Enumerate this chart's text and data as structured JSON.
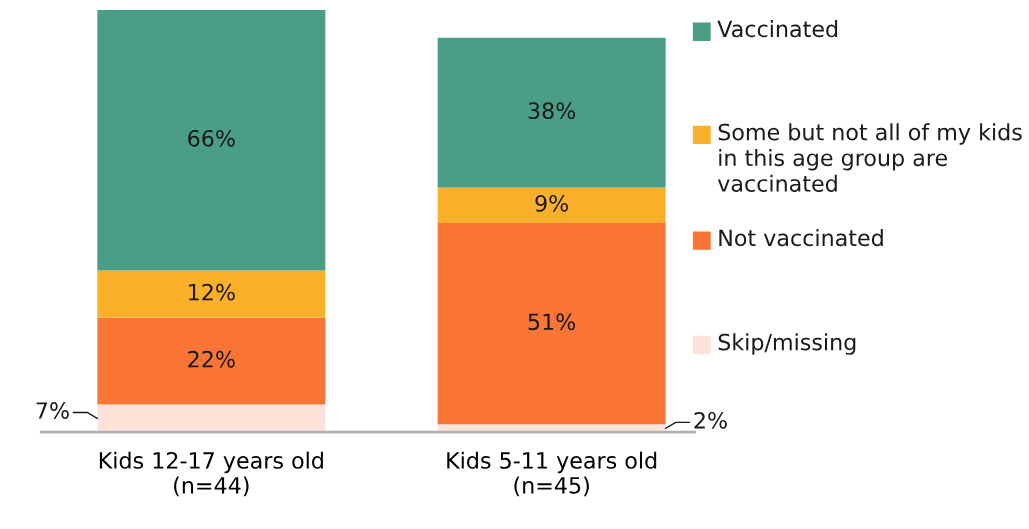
{
  "chart_data": {
    "type": "bar",
    "stacked": true,
    "categories": [
      "Kids 12-17 years old\n(n=44)",
      "Kids 5-11 years old\n(n=45)"
    ],
    "series": [
      {
        "name": "Skip/missing",
        "color": "#fce2d8",
        "values": [
          7,
          2
        ],
        "value_labels": [
          "7%",
          "2%"
        ]
      },
      {
        "name": "Not vaccinated",
        "color": "#fb7636",
        "values": [
          22,
          51
        ],
        "value_labels": [
          "22%",
          "51%"
        ]
      },
      {
        "name": "Some but not all of my kids in this age group are vaccinated",
        "color": "#fbb02c",
        "values": [
          12,
          9
        ],
        "value_labels": [
          "12%",
          "9%"
        ]
      },
      {
        "name": "Vaccinated",
        "color": "#4a9e85",
        "values": [
          66,
          38
        ],
        "value_labels": [
          "66%",
          "38%"
        ]
      }
    ],
    "legend": "right",
    "grid": false
  }
}
